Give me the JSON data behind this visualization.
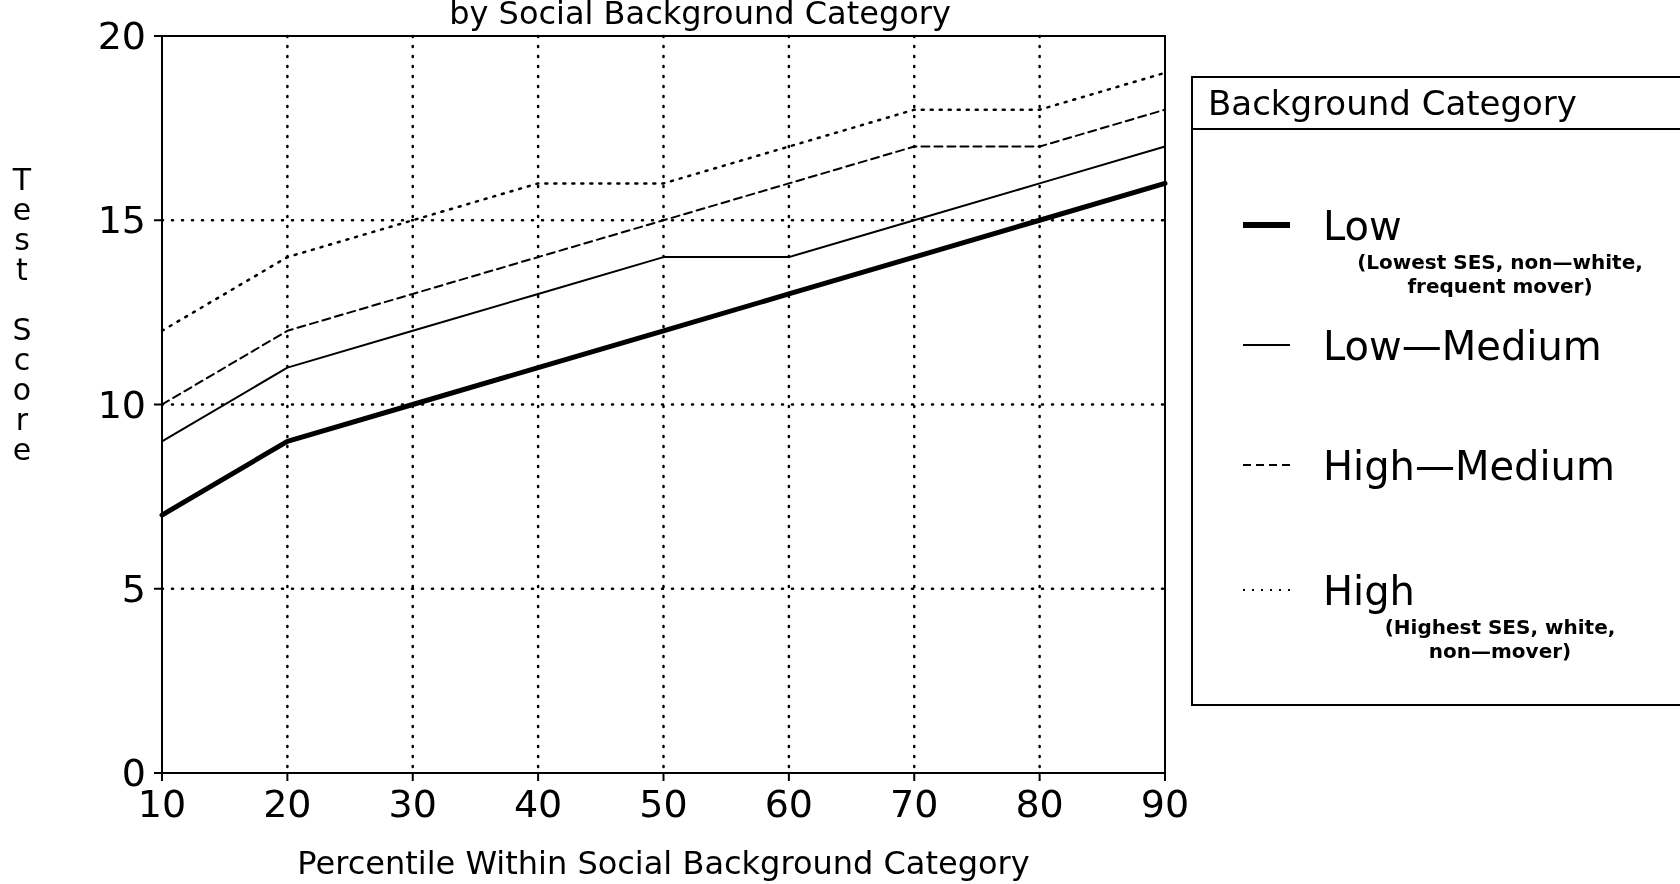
{
  "chart_data": {
    "type": "line",
    "title": "by Social Background Category",
    "xlabel": "Percentile Within Social Background Category",
    "ylabel": "Test Score",
    "legend_title": "Background Category",
    "x": [
      10,
      20,
      30,
      40,
      50,
      60,
      70,
      80,
      90
    ],
    "series": [
      {
        "name": "Low",
        "color": "#000000",
        "line_style": "solid",
        "values": [
          7,
          9,
          10,
          11,
          12,
          13,
          14,
          15,
          16
        ]
      },
      {
        "name": "Low—Medium",
        "color": "#000000",
        "line_style": "solid",
        "values": [
          9,
          11,
          12,
          13,
          14,
          14,
          15,
          16,
          17
        ]
      },
      {
        "name": "High—Medium",
        "color": "#000000",
        "line_style": "dashed",
        "values": [
          10,
          12,
          13,
          14,
          15,
          16,
          17,
          17,
          18
        ]
      },
      {
        "name": "High",
        "color": "#000000",
        "line_style": "dotted",
        "values": [
          12,
          14,
          15,
          16,
          16,
          17,
          18,
          18,
          19
        ]
      }
    ],
    "annotations": [
      "(Lowest SES, non—white,\nfrequent mover)",
      "(Highest SES, white,\nnon—mover)"
    ],
    "xlim": [
      10,
      90
    ],
    "xticks": [
      10,
      20,
      30,
      40,
      50,
      60,
      70,
      80,
      90
    ],
    "ylim": [
      0,
      20
    ],
    "yticks": [
      0,
      5,
      10,
      15,
      20
    ],
    "grid": true,
    "legend": "right"
  }
}
